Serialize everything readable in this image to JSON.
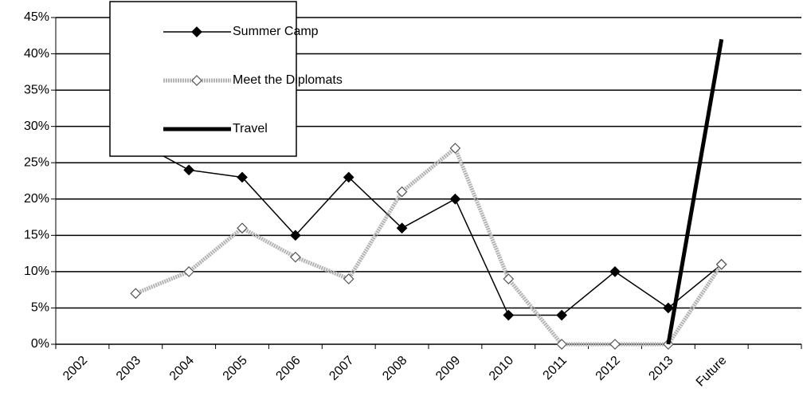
{
  "chart_data": {
    "type": "line",
    "categories": [
      "2002",
      "2003",
      "2004",
      "2005",
      "2006",
      "2007",
      "2008",
      "2009",
      "2010",
      "2011",
      "2012",
      "2013",
      "Future",
      null
    ],
    "series": [
      {
        "name": "Summer Camp",
        "color": "#000000",
        "values": [
          null,
          28,
          24,
          23,
          15,
          23,
          16,
          20,
          4,
          4,
          10,
          5,
          11,
          null
        ]
      },
      {
        "name": "Meet the Diplomats",
        "color": "#b3b3b3",
        "values": [
          null,
          7,
          10,
          16,
          12,
          9,
          21,
          27,
          9,
          0,
          0,
          0,
          11,
          null
        ]
      },
      {
        "name": "Travel",
        "color": "#000000",
        "values": [
          null,
          null,
          null,
          null,
          null,
          null,
          null,
          null,
          null,
          null,
          null,
          0,
          42,
          null
        ]
      }
    ],
    "ylim": [
      0,
      45
    ],
    "yticks": [
      {
        "value": 0,
        "label": "0%"
      },
      {
        "value": 5,
        "label": "5%"
      },
      {
        "value": 10,
        "label": "10%"
      },
      {
        "value": 15,
        "label": "15%"
      },
      {
        "value": 20,
        "label": "20%"
      },
      {
        "value": 25,
        "label": "25%"
      },
      {
        "value": 30,
        "label": "30%"
      },
      {
        "value": 35,
        "label": "35%"
      },
      {
        "value": 40,
        "label": "40%"
      },
      {
        "value": 45,
        "label": "45%"
      }
    ],
    "grid": true,
    "legend": "upper left"
  }
}
